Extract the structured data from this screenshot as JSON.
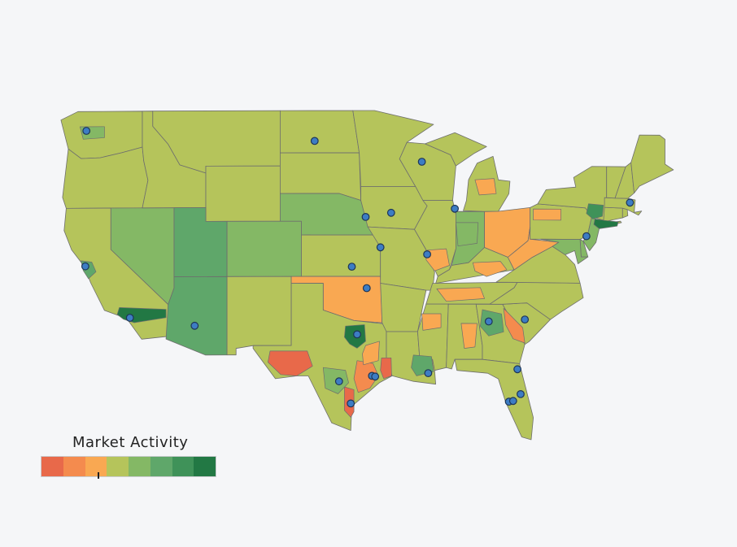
{
  "legend": {
    "title": "Market Activity",
    "colors": [
      "#e8694a",
      "#f48b4e",
      "#f9a852",
      "#b5c45b",
      "#84b865",
      "#5fa76a",
      "#3f9259",
      "#227844"
    ],
    "current_index": 2.6
  },
  "colors": {
    "background": "#f5f6f8",
    "border": "#6e6e6e",
    "marker_fill": "#3d7dc4",
    "marker_stroke": "#1d3557"
  },
  "regions": [
    {
      "name": "WA",
      "level": 3
    },
    {
      "name": "OR",
      "level": 3
    },
    {
      "name": "CA",
      "level": 3
    },
    {
      "name": "NV",
      "level": 4
    },
    {
      "name": "ID",
      "level": 3
    },
    {
      "name": "MT",
      "level": 3
    },
    {
      "name": "WY",
      "level": 3
    },
    {
      "name": "UT",
      "level": 5
    },
    {
      "name": "AZ",
      "level": 5
    },
    {
      "name": "CO",
      "level": 4
    },
    {
      "name": "NM",
      "level": 3
    },
    {
      "name": "ND",
      "level": 3
    },
    {
      "name": "SD",
      "level": 3
    },
    {
      "name": "NE",
      "level": 4
    },
    {
      "name": "KS",
      "level": 3
    },
    {
      "name": "OK",
      "level": 2
    },
    {
      "name": "TX",
      "level": 3
    },
    {
      "name": "MN",
      "level": 3
    },
    {
      "name": "IA",
      "level": 3
    },
    {
      "name": "MO",
      "level": 3
    },
    {
      "name": "AR",
      "level": 3
    },
    {
      "name": "LA",
      "level": 3
    },
    {
      "name": "WI",
      "level": 3
    },
    {
      "name": "IL",
      "level": 3
    },
    {
      "name": "MI",
      "level": 3
    },
    {
      "name": "IN",
      "level": 4
    },
    {
      "name": "OH",
      "level": 2
    },
    {
      "name": "KY",
      "level": 3
    },
    {
      "name": "TN",
      "level": 3
    },
    {
      "name": "MS",
      "level": 3
    },
    {
      "name": "AL",
      "level": 3
    },
    {
      "name": "GA",
      "level": 3
    },
    {
      "name": "FL",
      "level": 3
    },
    {
      "name": "SC",
      "level": 3
    },
    {
      "name": "NC",
      "level": 3
    },
    {
      "name": "VA",
      "level": 3
    },
    {
      "name": "WV",
      "level": 2
    },
    {
      "name": "PA",
      "level": 3
    },
    {
      "name": "NY",
      "level": 3
    },
    {
      "name": "NJ",
      "level": 4
    },
    {
      "name": "DE",
      "level": 4
    },
    {
      "name": "MD",
      "level": 4
    },
    {
      "name": "CT",
      "level": 3
    },
    {
      "name": "RI",
      "level": 3
    },
    {
      "name": "MA",
      "level": 3
    },
    {
      "name": "VT",
      "level": 3
    },
    {
      "name": "NH",
      "level": 3
    },
    {
      "name": "ME",
      "level": 3
    }
  ],
  "hotspots": [
    {
      "name": "west-texas-counties",
      "level": 0
    },
    {
      "name": "houston-gulf-counties",
      "level": 1
    },
    {
      "name": "beaumont-counties",
      "level": 0
    },
    {
      "name": "corpus-christi-counties",
      "level": 0
    },
    {
      "name": "east-texas-counties",
      "level": 2
    },
    {
      "name": "dallas-fort-worth-counties",
      "level": 7
    },
    {
      "name": "san-antonio-counties",
      "level": 4
    },
    {
      "name": "los-angeles-counties",
      "level": 7
    },
    {
      "name": "san-francisco-counties",
      "level": 5
    },
    {
      "name": "seattle-counties",
      "level": 4
    },
    {
      "name": "new-york-counties",
      "level": 7
    },
    {
      "name": "north-jersey-counties",
      "level": 6
    },
    {
      "name": "savannah-counties",
      "level": 1
    },
    {
      "name": "atlanta-counties",
      "level": 5
    },
    {
      "name": "southern-louisiana-counties",
      "level": 5
    },
    {
      "name": "alabama-counties",
      "level": 2
    },
    {
      "name": "tennessee-counties",
      "level": 2
    },
    {
      "name": "mississippi-counties",
      "level": 2
    },
    {
      "name": "kentucky-counties",
      "level": 2
    },
    {
      "name": "pennsylvania-counties",
      "level": 2
    },
    {
      "name": "michigan-counties",
      "level": 2
    },
    {
      "name": "southern-illinois-counties",
      "level": 2
    },
    {
      "name": "indiana-counties",
      "level": 4
    }
  ],
  "markers": [
    {
      "name": "seattle",
      "lon": -122.3,
      "lat": 47.6
    },
    {
      "name": "san-francisco",
      "lon": -122.4,
      "lat": 37.8
    },
    {
      "name": "los-angeles",
      "lon": -118.2,
      "lat": 34.05
    },
    {
      "name": "phoenix",
      "lon": -112.1,
      "lat": 33.45
    },
    {
      "name": "bismarck",
      "lon": -100.8,
      "lat": 46.8
    },
    {
      "name": "omaha",
      "lon": -96.0,
      "lat": 41.3
    },
    {
      "name": "kansas-city",
      "lon": -94.6,
      "lat": 39.1
    },
    {
      "name": "wichita",
      "lon": -97.3,
      "lat": 37.7
    },
    {
      "name": "tulsa",
      "lon": -95.9,
      "lat": 36.15
    },
    {
      "name": "dallas",
      "lon": -96.8,
      "lat": 32.8
    },
    {
      "name": "san-antonio",
      "lon": -98.5,
      "lat": 29.4
    },
    {
      "name": "houston",
      "lon": -95.4,
      "lat": 29.8
    },
    {
      "name": "houston-east",
      "lon": -95.1,
      "lat": 29.75
    },
    {
      "name": "corpus-christi",
      "lon": -97.4,
      "lat": 27.8
    },
    {
      "name": "des-moines",
      "lon": -93.6,
      "lat": 41.6
    },
    {
      "name": "minneapolis-st-cloud",
      "lon": -90.7,
      "lat": 45.3
    },
    {
      "name": "chicago",
      "lon": -87.6,
      "lat": 41.9
    },
    {
      "name": "st-louis",
      "lon": -90.2,
      "lat": 38.6
    },
    {
      "name": "new-orleans",
      "lon": -90.1,
      "lat": 30.0
    },
    {
      "name": "atlanta",
      "lon": -84.4,
      "lat": 33.75
    },
    {
      "name": "columbia",
      "lon": -81.0,
      "lat": 33.9
    },
    {
      "name": "jacksonville",
      "lon": -81.7,
      "lat": 30.3
    },
    {
      "name": "orlando",
      "lon": -81.4,
      "lat": 28.5
    },
    {
      "name": "tampa",
      "lon": -82.5,
      "lat": 27.95
    },
    {
      "name": "tampa-bay",
      "lon": -82.1,
      "lat": 28.0
    },
    {
      "name": "philadelphia",
      "lon": -75.2,
      "lat": 39.95
    },
    {
      "name": "boston",
      "lon": -71.1,
      "lat": 42.4
    }
  ]
}
